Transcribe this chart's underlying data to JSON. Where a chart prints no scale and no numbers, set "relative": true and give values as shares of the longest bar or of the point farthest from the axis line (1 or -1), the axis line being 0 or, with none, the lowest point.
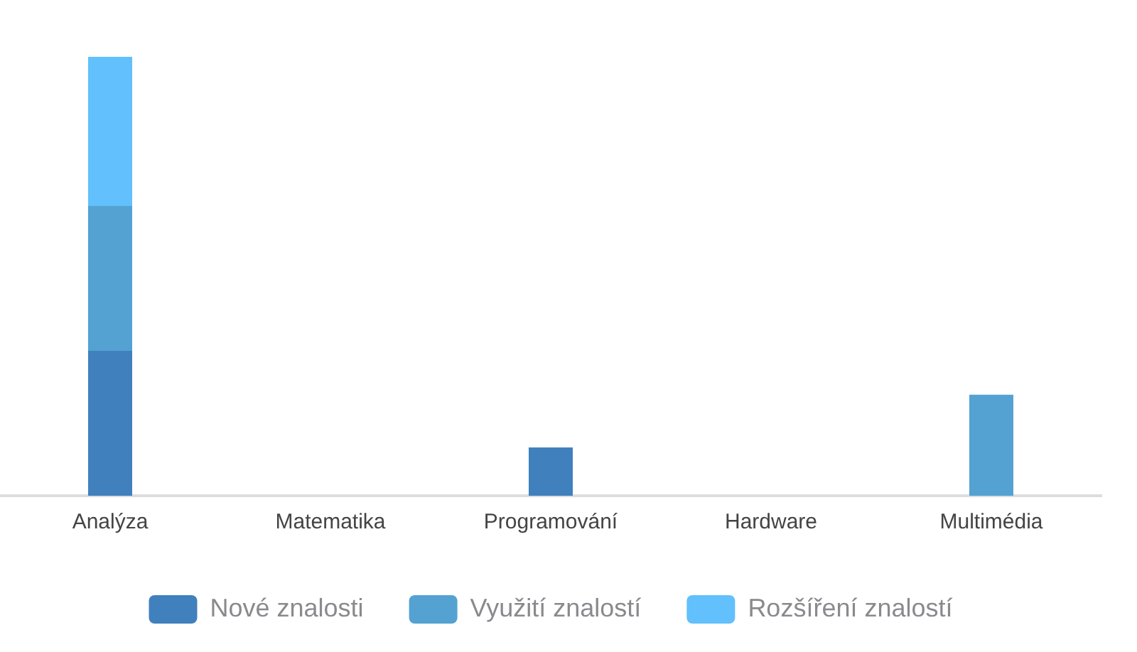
{
  "chart_data": {
    "type": "bar",
    "stacked": true,
    "relative": true,
    "categories": [
      "Analýza",
      "Matematika",
      "Programování",
      "Hardware",
      "Multimédia"
    ],
    "series": [
      {
        "name": "Nové znalosti",
        "color": "#4080bd",
        "values": [
          0.33,
          0,
          0.11,
          0,
          0
        ]
      },
      {
        "name": "Využití znalostí",
        "color": "#53a2d2",
        "values": [
          0.33,
          0,
          0,
          0,
          0.23
        ]
      },
      {
        "name": "Rozšíření znalostí",
        "color": "#62c0fc",
        "values": [
          0.34,
          0,
          0,
          0,
          0
        ]
      }
    ],
    "grid": false,
    "legend": "bottom"
  }
}
